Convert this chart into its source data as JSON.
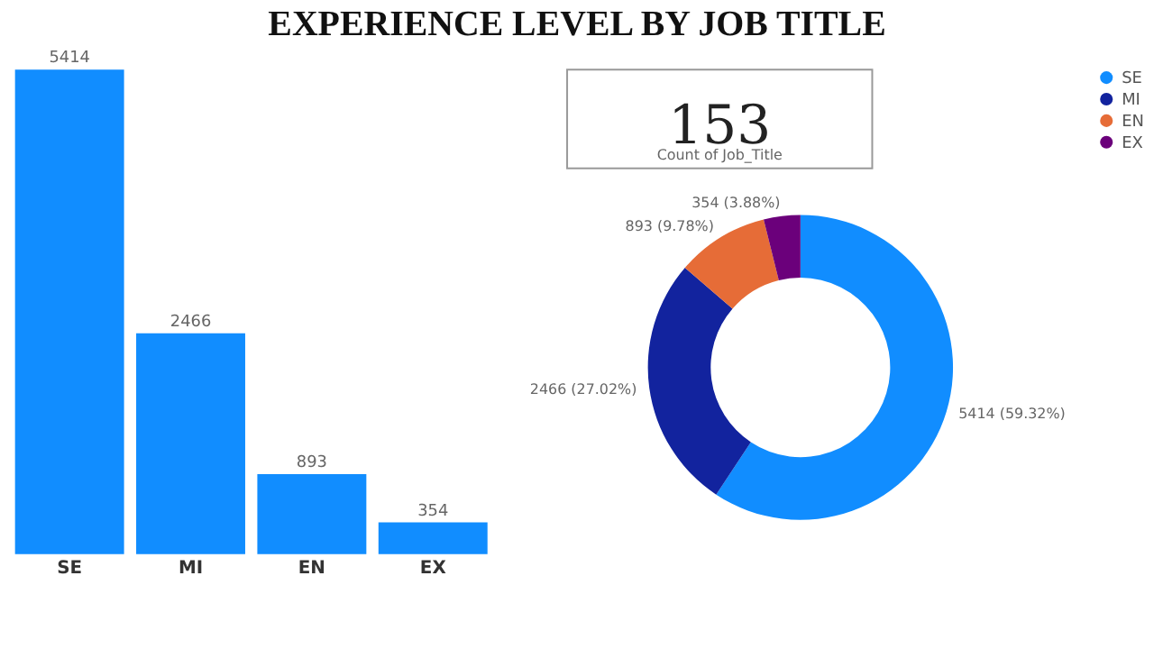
{
  "chart_data": [
    {
      "type": "bar",
      "title": "EXPERIENCE LEVEL BY JOB TITLE",
      "categories": [
        "SE",
        "MI",
        "EN",
        "EX"
      ],
      "values": [
        5414,
        2466,
        893,
        354
      ],
      "color": "#118dff",
      "data_labels": true
    },
    {
      "type": "other",
      "annotations": [
        "153",
        "Count of Job_Title"
      ]
    },
    {
      "type": "donut",
      "categories": [
        "SE",
        "MI",
        "EN",
        "EX"
      ],
      "values": [
        5414,
        2466,
        893,
        354
      ],
      "colors": [
        "#118dff",
        "#12239e",
        "#e66c37",
        "#6b007b"
      ],
      "value_labels": [
        "5414 (59.32%)",
        "2466 (27.02%)",
        "893 (9.78%)",
        "354 (3.88%)"
      ],
      "legend": "right"
    }
  ]
}
